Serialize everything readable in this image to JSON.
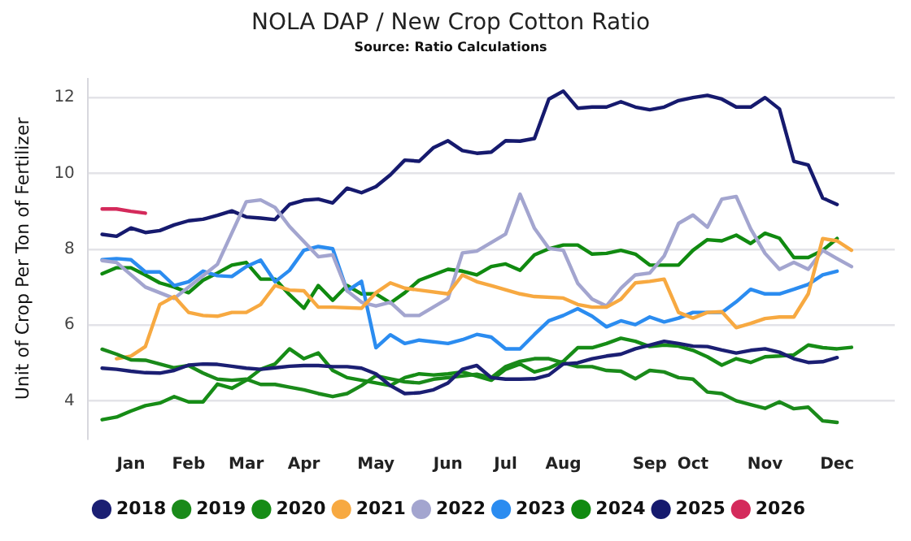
{
  "chart_data": {
    "type": "line",
    "title": "NOLA DAP / New Crop Cotton Ratio",
    "subtitle": "Source: Ratio Calculations",
    "ylabel": "Unit of Crop Per Ton of Fertilizer",
    "categories": [
      null,
      null,
      null,
      "Jan",
      null,
      null,
      null,
      "Feb",
      null,
      null,
      null,
      "Mar",
      null,
      null,
      null,
      "Apr",
      null,
      null,
      null,
      null,
      "May",
      null,
      null,
      null,
      null,
      "Jun",
      null,
      null,
      null,
      "Jul",
      null,
      null,
      null,
      "Aug",
      null,
      null,
      null,
      null,
      null,
      "Sep",
      null,
      null,
      "Oct",
      null,
      null,
      null,
      null,
      "Nov",
      null,
      null,
      null,
      null,
      "Dec",
      null,
      null,
      null,
      null
    ],
    "ylim": [
      3,
      12.5
    ],
    "yticks": [
      4,
      6,
      8,
      10,
      12
    ],
    "grid": "y",
    "legend": "bottom",
    "series": [
      {
        "name": "2018",
        "color": "#1b1f73",
        "values": [
          null,
          4.86,
          4.83,
          4.78,
          4.74,
          4.73,
          4.8,
          4.94,
          4.97,
          4.96,
          4.91,
          4.86,
          4.83,
          4.87,
          4.91,
          4.93,
          4.93,
          4.9,
          4.9,
          4.86,
          4.71,
          4.4,
          4.19,
          4.21,
          4.29,
          4.47,
          4.83,
          4.93,
          4.61,
          4.57,
          4.57,
          4.58,
          4.68,
          4.97,
          5.0,
          5.11,
          5.18,
          5.23,
          5.37,
          5.47,
          5.57,
          5.51,
          5.44,
          5.43,
          5.34,
          5.26,
          5.33,
          5.37,
          5.28,
          5.11,
          5.01,
          5.03,
          5.14,
          null,
          null,
          null,
          null
        ]
      },
      {
        "name": "2019",
        "color": "#1a8a1a",
        "values": [
          null,
          5.36,
          5.23,
          5.08,
          5.07,
          4.97,
          4.87,
          4.93,
          4.73,
          4.57,
          4.54,
          4.57,
          4.43,
          4.43,
          4.36,
          4.29,
          4.19,
          4.11,
          4.19,
          4.4,
          4.66,
          4.58,
          4.5,
          4.47,
          4.57,
          4.61,
          null,
          4.7,
          4.61,
          4.9,
          5.04,
          5.11,
          5.11,
          5.0,
          4.9,
          4.9,
          4.8,
          4.78,
          4.58,
          4.8,
          4.76,
          4.61,
          4.57,
          4.23,
          4.19,
          4.0,
          3.9,
          3.8,
          3.97,
          3.79,
          3.83,
          3.47,
          3.43,
          null,
          null,
          null,
          null
        ]
      },
      {
        "name": "2020",
        "color": "#168c16",
        "values": [
          null,
          3.5,
          3.57,
          3.73,
          3.87,
          3.94,
          4.11,
          3.97,
          3.97,
          4.44,
          4.33,
          4.54,
          4.83,
          4.97,
          5.37,
          5.11,
          5.26,
          4.8,
          4.61,
          4.54,
          null,
          4.4,
          4.61,
          4.71,
          4.68,
          4.71,
          4.76,
          null,
          4.54,
          4.83,
          4.97,
          4.76,
          4.86,
          5.04,
          5.4,
          5.4,
          5.51,
          5.65,
          5.57,
          5.43,
          5.47,
          5.44,
          5.33,
          5.16,
          4.94,
          5.11,
          5.01,
          5.16,
          5.18,
          5.21,
          5.47,
          5.4,
          5.37,
          5.41,
          null,
          null,
          null
        ]
      },
      {
        "name": "2021",
        "color": "#f7a941",
        "values": [
          null,
          null,
          5.11,
          5.18,
          5.43,
          6.54,
          6.75,
          6.33,
          6.25,
          6.23,
          6.33,
          6.33,
          6.54,
          7.04,
          6.92,
          6.9,
          6.47,
          6.47,
          null,
          6.44,
          6.85,
          7.11,
          6.97,
          null,
          null,
          6.82,
          7.32,
          7.14,
          7.04,
          null,
          6.82,
          6.75,
          null,
          6.71,
          6.54,
          6.47,
          6.47,
          6.68,
          7.11,
          7.15,
          7.21,
          6.33,
          6.18,
          6.33,
          6.35,
          5.93,
          6.04,
          6.17,
          6.21,
          6.21,
          6.82,
          8.28,
          8.22,
          7.97,
          null,
          null,
          null
        ]
      },
      {
        "name": "2022",
        "color": "#a3a5cf",
        "values": [
          null,
          7.7,
          7.65,
          null,
          7.0,
          null,
          6.7,
          null,
          null,
          7.6,
          null,
          9.25,
          9.3,
          9.1,
          8.6,
          null,
          7.8,
          7.85,
          6.9,
          6.6,
          6.5,
          6.6,
          6.25,
          6.25,
          null,
          6.7,
          7.9,
          7.95,
          null,
          8.4,
          9.45,
          8.55,
          8.02,
          7.97,
          7.1,
          6.68,
          6.5,
          6.97,
          7.32,
          7.37,
          7.82,
          8.68,
          8.9,
          8.58,
          9.32,
          9.39,
          8.54,
          7.89,
          7.47,
          7.65,
          7.47,
          7.97,
          7.75,
          7.54,
          null,
          null,
          null
        ]
      },
      {
        "name": "2023",
        "color": "#2b8cf0",
        "values": [
          null,
          7.72,
          7.75,
          7.72,
          7.4,
          7.4,
          7.04,
          7.14,
          7.42,
          7.3,
          7.28,
          7.54,
          7.71,
          7.14,
          7.44,
          7.97,
          8.07,
          8.01,
          6.9,
          7.15,
          5.4,
          5.74,
          5.51,
          5.6,
          null,
          5.51,
          5.61,
          5.75,
          5.68,
          5.37,
          5.37,
          5.75,
          6.11,
          6.25,
          6.43,
          6.23,
          5.95,
          6.11,
          6.01,
          6.21,
          6.08,
          6.18,
          6.33,
          6.33,
          6.33,
          6.61,
          6.94,
          6.82,
          6.82,
          6.94,
          7.07,
          7.32,
          7.42,
          null,
          null,
          null,
          null
        ]
      },
      {
        "name": "2024",
        "color": "#108a10",
        "values": [
          null,
          7.35,
          7.51,
          7.51,
          7.32,
          7.11,
          7.0,
          6.85,
          7.18,
          7.37,
          7.58,
          7.65,
          7.21,
          7.21,
          6.8,
          6.44,
          7.04,
          6.65,
          7.04,
          6.82,
          6.82,
          6.58,
          6.85,
          7.18,
          null,
          7.47,
          7.42,
          7.32,
          7.54,
          7.61,
          7.44,
          7.85,
          8.01,
          8.11,
          8.11,
          7.87,
          7.89,
          7.97,
          7.87,
          7.58,
          7.58,
          7.58,
          7.97,
          8.25,
          8.22,
          8.37,
          8.15,
          8.42,
          8.29,
          7.78,
          7.78,
          7.97,
          8.28,
          null,
          null,
          null,
          null
        ]
      },
      {
        "name": "2025",
        "color": "#161a6e",
        "values": [
          null,
          8.39,
          8.34,
          8.56,
          8.44,
          8.49,
          8.64,
          8.75,
          8.79,
          8.89,
          9.01,
          8.85,
          8.82,
          8.78,
          9.18,
          9.29,
          9.32,
          9.22,
          9.61,
          9.49,
          9.65,
          9.96,
          10.35,
          10.32,
          10.68,
          10.86,
          10.6,
          10.53,
          10.56,
          10.86,
          10.85,
          10.92,
          11.96,
          12.17,
          11.72,
          11.75,
          11.75,
          11.89,
          11.75,
          11.68,
          11.75,
          11.92,
          12.0,
          12.06,
          11.96,
          11.75,
          11.75,
          12.0,
          11.7,
          10.32,
          10.22,
          9.35,
          9.18,
          null,
          null,
          null,
          null
        ]
      },
      {
        "name": "2026",
        "color": "#d42a5b",
        "values": [
          null,
          9.06,
          9.06,
          9.0,
          8.95,
          null,
          null,
          null,
          null,
          null,
          null,
          null,
          null,
          null,
          null,
          null,
          null,
          null,
          null,
          null,
          null,
          null,
          null,
          null,
          null,
          null,
          null,
          null,
          null,
          null,
          null,
          null,
          null,
          null,
          null,
          null,
          null,
          null,
          null,
          null,
          null,
          null,
          null,
          null,
          null,
          null,
          null,
          null,
          null,
          null,
          null,
          null,
          null,
          null,
          null,
          null,
          null
        ]
      }
    ]
  }
}
